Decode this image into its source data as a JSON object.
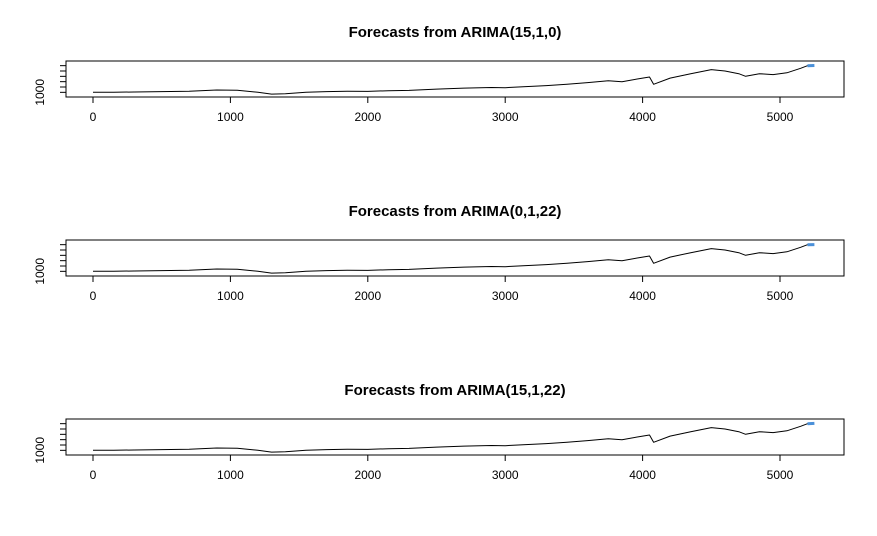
{
  "chart_data": [
    {
      "type": "line",
      "title": "Forecasts from ARIMA(15,1,0)",
      "xlim": [
        0,
        5250
      ],
      "x_ticks": [
        "0",
        "1000",
        "2000",
        "3000",
        "4000",
        "5000"
      ],
      "y_ticks": [
        "1000"
      ],
      "series": [
        {
          "color": "#000000",
          "x": [
            0,
            150,
            300,
            500,
            700,
            900,
            1050,
            1200,
            1300,
            1400,
            1550,
            1700,
            1850,
            2000,
            2150,
            2300,
            2500,
            2700,
            2900,
            3000,
            3150,
            3300,
            3450,
            3600,
            3750,
            3850,
            4000,
            4050,
            4080,
            4200,
            4350,
            4500,
            4600,
            4700,
            4750,
            4850,
            4950,
            5050,
            5150,
            5200
          ],
          "y": [
            1000,
            1010,
            1020,
            1040,
            1060,
            1130,
            1120,
            1000,
            900,
            920,
            1000,
            1040,
            1060,
            1050,
            1090,
            1110,
            1180,
            1240,
            1270,
            1260,
            1320,
            1380,
            1450,
            1550,
            1650,
            1600,
            1800,
            1860,
            1450,
            1800,
            2050,
            2280,
            2200,
            2050,
            1900,
            2050,
            2000,
            2100,
            2350,
            2500
          ]
        },
        {
          "color": "#4a90d9",
          "x": [
            5200,
            5250
          ],
          "y": [
            2500,
            2510
          ]
        }
      ]
    },
    {
      "type": "line",
      "title": "Forecasts from ARIMA(0,1,22)",
      "xlim": [
        0,
        5250
      ],
      "x_ticks": [
        "0",
        "1000",
        "2000",
        "3000",
        "4000",
        "5000"
      ],
      "y_ticks": [
        "1000"
      ],
      "series": [
        {
          "color": "#000000",
          "x": [
            0,
            150,
            300,
            500,
            700,
            900,
            1050,
            1200,
            1300,
            1400,
            1550,
            1700,
            1850,
            2000,
            2150,
            2300,
            2500,
            2700,
            2900,
            3000,
            3150,
            3300,
            3450,
            3600,
            3750,
            3850,
            4000,
            4050,
            4080,
            4200,
            4350,
            4500,
            4600,
            4700,
            4750,
            4850,
            4950,
            5050,
            5150,
            5200
          ],
          "y": [
            1000,
            1010,
            1020,
            1040,
            1060,
            1130,
            1120,
            1000,
            900,
            920,
            1000,
            1040,
            1060,
            1050,
            1090,
            1110,
            1180,
            1240,
            1270,
            1260,
            1320,
            1380,
            1450,
            1550,
            1650,
            1600,
            1800,
            1860,
            1450,
            1800,
            2050,
            2280,
            2200,
            2050,
            1900,
            2050,
            2000,
            2100,
            2350,
            2500
          ]
        },
        {
          "color": "#4a90d9",
          "x": [
            5200,
            5250
          ],
          "y": [
            2500,
            2505
          ]
        }
      ]
    },
    {
      "type": "line",
      "title": "Forecasts from ARIMA(15,1,22)",
      "xlim": [
        0,
        5250
      ],
      "x_ticks": [
        "0",
        "1000",
        "2000",
        "3000",
        "4000",
        "5000"
      ],
      "y_ticks": [
        "1000"
      ],
      "series": [
        {
          "color": "#000000",
          "x": [
            0,
            150,
            300,
            500,
            700,
            900,
            1050,
            1200,
            1300,
            1400,
            1550,
            1700,
            1850,
            2000,
            2150,
            2300,
            2500,
            2700,
            2900,
            3000,
            3150,
            3300,
            3450,
            3600,
            3750,
            3850,
            4000,
            4050,
            4080,
            4200,
            4350,
            4500,
            4600,
            4700,
            4750,
            4850,
            4950,
            5050,
            5150,
            5200
          ],
          "y": [
            1000,
            1010,
            1020,
            1040,
            1060,
            1130,
            1120,
            1000,
            900,
            920,
            1000,
            1040,
            1060,
            1050,
            1090,
            1110,
            1180,
            1240,
            1270,
            1260,
            1320,
            1380,
            1450,
            1550,
            1650,
            1600,
            1800,
            1860,
            1450,
            1800,
            2050,
            2280,
            2200,
            2050,
            1900,
            2050,
            2000,
            2100,
            2350,
            2500
          ]
        },
        {
          "color": "#4a90d9",
          "x": [
            5200,
            5250
          ],
          "y": [
            2500,
            2515
          ]
        }
      ]
    }
  ]
}
